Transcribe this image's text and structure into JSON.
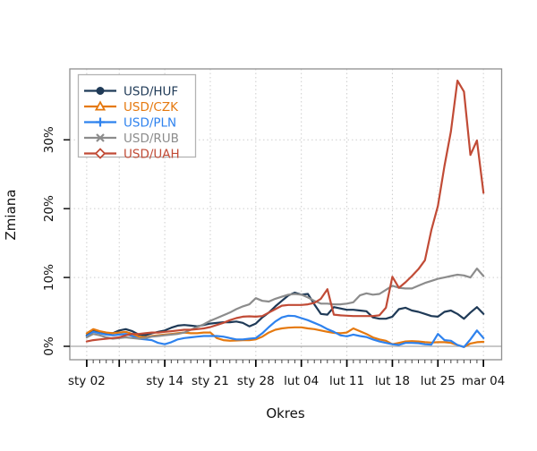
{
  "chart_data": {
    "type": "line",
    "title": "",
    "xlabel": "Okres",
    "ylabel": "Zmiana",
    "x_unit": "days since first point (daily data starting at sty 02)",
    "grid": "dotted",
    "zero_line": true,
    "legend_position": "top-left",
    "ylim": [
      -1.95,
      40.3
    ],
    "x_axis": {
      "title": "Okres",
      "major_ticks": [
        {
          "day": 0,
          "label": "sty 02"
        },
        {
          "day": 5,
          "label": ""
        },
        {
          "day": 12,
          "label": "sty 14"
        },
        {
          "day": 19,
          "label": "sty 21"
        },
        {
          "day": 26,
          "label": "sty 28"
        },
        {
          "day": 33,
          "label": "lut 04"
        },
        {
          "day": 40,
          "label": "lut 11"
        },
        {
          "day": 47,
          "label": "lut 18"
        },
        {
          "day": 54,
          "label": "lut 25"
        },
        {
          "day": 61,
          "label": "mar 04"
        }
      ],
      "minor_ticks": "daily"
    },
    "y_axis": {
      "title": "Zmiana",
      "tick_values": [
        0,
        10,
        20,
        30
      ],
      "tick_labels": [
        "0%",
        "10%",
        "20%",
        "30%"
      ]
    },
    "series": [
      {
        "name": "USD/HUF",
        "color": "#1f3a57",
        "marker": "filled-circle",
        "values": [
          1.6,
          2.2,
          2.0,
          1.9,
          1.9,
          2.3,
          2.5,
          2.2,
          1.7,
          1.6,
          1.9,
          2.1,
          2.3,
          2.7,
          3.0,
          3.1,
          3.0,
          2.9,
          3.1,
          3.3,
          3.4,
          3.5,
          3.5,
          3.6,
          3.4,
          2.9,
          3.3,
          4.2,
          4.9,
          5.8,
          6.6,
          7.4,
          7.8,
          7.5,
          7.6,
          6.1,
          4.7,
          4.6,
          5.7,
          5.5,
          5.3,
          5.3,
          5.2,
          5.1,
          4.2,
          4.0,
          4.0,
          4.3,
          5.4,
          5.6,
          5.2,
          5.0,
          4.7,
          4.4,
          4.3,
          5.0,
          5.2,
          4.7,
          4.0,
          4.9,
          5.7,
          4.7
        ]
      },
      {
        "name": "USD/CZK",
        "color": "#e5790f",
        "marker": "open-triangle",
        "values": [
          1.9,
          2.5,
          2.2,
          2.0,
          1.9,
          2.0,
          2.1,
          1.8,
          1.4,
          1.3,
          1.5,
          1.6,
          1.7,
          1.8,
          1.9,
          2.0,
          1.9,
          1.9,
          2.0,
          2.0,
          1.2,
          0.9,
          0.8,
          0.85,
          0.9,
          0.9,
          1.0,
          1.4,
          2.0,
          2.4,
          2.6,
          2.7,
          2.75,
          2.75,
          2.6,
          2.5,
          2.3,
          2.1,
          1.95,
          1.9,
          2.0,
          2.6,
          2.2,
          1.8,
          1.3,
          1.0,
          0.8,
          0.3,
          0.5,
          0.7,
          0.75,
          0.7,
          0.6,
          0.55,
          0.6,
          0.6,
          0.5,
          0.2,
          -0.1,
          0.4,
          0.6,
          0.65
        ]
      },
      {
        "name": "USD/PLN",
        "color": "#2e82ee",
        "marker": "plus",
        "values": [
          1.5,
          2.1,
          1.9,
          1.7,
          1.6,
          1.7,
          1.8,
          1.5,
          1.1,
          1.0,
          0.9,
          0.5,
          0.3,
          0.6,
          1.0,
          1.2,
          1.3,
          1.4,
          1.5,
          1.5,
          1.5,
          1.4,
          1.2,
          1.0,
          1.0,
          1.1,
          1.2,
          1.9,
          2.8,
          3.6,
          4.2,
          4.45,
          4.4,
          4.1,
          3.8,
          3.4,
          3.0,
          2.5,
          2.1,
          1.6,
          1.45,
          1.7,
          1.5,
          1.35,
          1.0,
          0.7,
          0.5,
          0.3,
          0.2,
          0.5,
          0.5,
          0.45,
          0.3,
          0.25,
          1.8,
          0.9,
          0.8,
          0.2,
          -0.1,
          1.0,
          2.3,
          1.2
        ]
      },
      {
        "name": "USD/RUB",
        "color": "#8c8c8c",
        "marker": "x-cross",
        "values": [
          1.3,
          1.8,
          1.6,
          1.3,
          1.1,
          1.2,
          1.3,
          1.2,
          1.1,
          1.2,
          1.4,
          1.5,
          1.6,
          1.7,
          1.8,
          2.0,
          2.4,
          2.8,
          3.2,
          3.7,
          4.1,
          4.5,
          4.9,
          5.4,
          5.8,
          6.1,
          7.0,
          6.6,
          6.5,
          6.9,
          7.2,
          7.5,
          7.6,
          7.5,
          7.1,
          6.6,
          6.2,
          6.2,
          6.1,
          6.1,
          6.2,
          6.4,
          7.4,
          7.7,
          7.5,
          7.6,
          8.2,
          8.8,
          8.5,
          8.4,
          8.4,
          8.8,
          9.2,
          9.5,
          9.8,
          10.0,
          10.2,
          10.4,
          10.3,
          10.0,
          11.3,
          10.2
        ]
      },
      {
        "name": "USD/UAH",
        "color": "#c14b36",
        "marker": "open-diamond",
        "values": [
          0.7,
          0.9,
          1.0,
          1.1,
          1.2,
          1.3,
          1.6,
          1.8,
          1.8,
          1.9,
          2.0,
          2.0,
          2.1,
          2.2,
          2.3,
          2.4,
          2.4,
          2.5,
          2.6,
          2.8,
          3.1,
          3.4,
          3.8,
          4.1,
          4.3,
          4.35,
          4.3,
          4.4,
          4.9,
          5.4,
          5.9,
          6.0,
          6.0,
          6.0,
          6.1,
          6.3,
          6.9,
          8.3,
          4.6,
          4.5,
          4.45,
          4.4,
          4.4,
          4.4,
          4.4,
          4.5,
          5.6,
          10.1,
          8.5,
          9.3,
          10.2,
          11.2,
          12.5,
          16.9,
          20.4,
          26.2,
          31.2,
          38.6,
          37.0,
          27.8,
          29.9,
          22.3
        ]
      }
    ]
  }
}
